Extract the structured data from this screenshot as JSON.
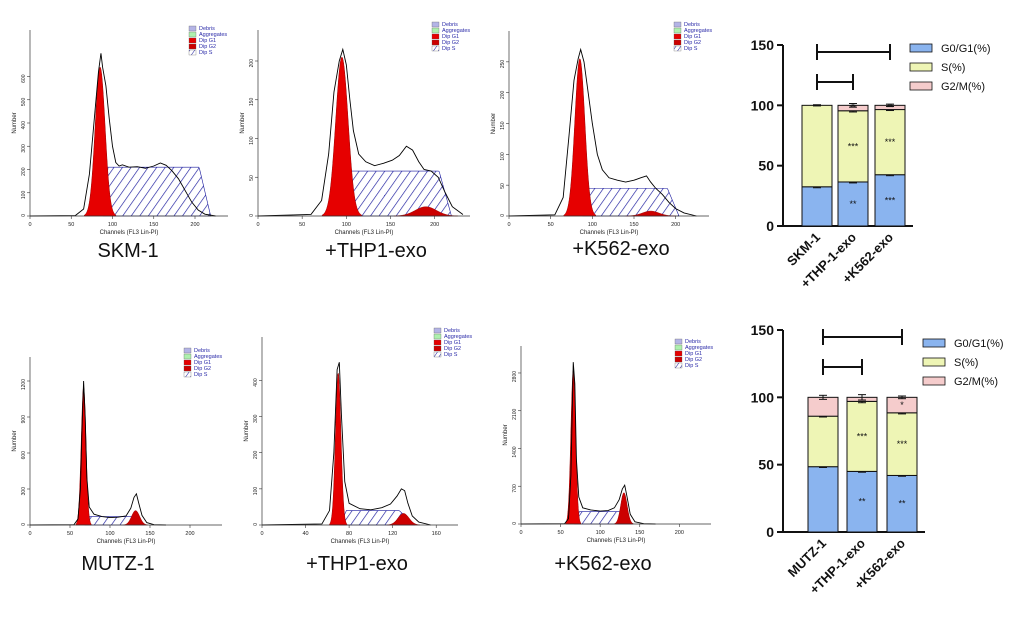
{
  "colors": {
    "g1": "#e60000",
    "g2": "#cc0000",
    "debris": "#b4b4e6",
    "aggregates": "#aef0ae",
    "s_hatch": "#1a1a9e",
    "envelope": "#000000",
    "legend_text": "#2a2aa8",
    "bar_g0g1": "#8ab4ef",
    "bar_s": "#eef5b5",
    "bar_g2m": "#f5cccc"
  },
  "histogram_legend": [
    "Debris",
    "Aggregates",
    "Dip G1",
    "Dip G2",
    "Dip S"
  ],
  "x_axis_label": "Channels (FL3 Lin-PI)",
  "y_axis_label": "Number",
  "histograms": [
    {
      "id": "skm1",
      "caption": "SKM-1",
      "x_ticks": [
        "0",
        "50",
        "100",
        "150",
        "200"
      ],
      "xmax": 240,
      "y_ticks": [
        "0",
        "100",
        "200",
        "300",
        "400",
        "500",
        "600"
      ],
      "ymax": 800,
      "g1_peak": 85,
      "g1_height": 640,
      "g1_width": 6,
      "g2_peak": 175,
      "g2_height": 0,
      "g2_width": 8,
      "s_level": 210,
      "s_end": 205,
      "envelope": [
        [
          0,
          0
        ],
        [
          55,
          2
        ],
        [
          65,
          30
        ],
        [
          72,
          180
        ],
        [
          78,
          420
        ],
        [
          83,
          620
        ],
        [
          86,
          700
        ],
        [
          88,
          640
        ],
        [
          92,
          560
        ],
        [
          96,
          420
        ],
        [
          100,
          300
        ],
        [
          104,
          230
        ],
        [
          108,
          215
        ],
        [
          112,
          220
        ],
        [
          120,
          210
        ],
        [
          130,
          212
        ],
        [
          140,
          205
        ],
        [
          150,
          215
        ],
        [
          158,
          228
        ],
        [
          165,
          218
        ],
        [
          172,
          195
        ],
        [
          180,
          160
        ],
        [
          188,
          110
        ],
        [
          196,
          60
        ],
        [
          204,
          25
        ],
        [
          212,
          8
        ],
        [
          225,
          0
        ]
      ]
    },
    {
      "id": "skm1-thp1",
      "caption": "+THP1-exo",
      "x_ticks": [
        "0",
        "50",
        "100",
        "150",
        "200"
      ],
      "xmax": 240,
      "y_ticks": [
        "0",
        "50",
        "100",
        "150",
        "200"
      ],
      "ymax": 240,
      "g1_peak": 95,
      "g1_height": 205,
      "g1_width": 7,
      "g2_peak": 190,
      "g2_height": 12,
      "g2_width": 12,
      "s_level": 58,
      "s_end": 205,
      "envelope": [
        [
          0,
          0
        ],
        [
          60,
          2
        ],
        [
          72,
          20
        ],
        [
          80,
          80
        ],
        [
          86,
          160
        ],
        [
          92,
          200
        ],
        [
          96,
          215
        ],
        [
          100,
          195
        ],
        [
          104,
          150
        ],
        [
          108,
          110
        ],
        [
          114,
          80
        ],
        [
          122,
          70
        ],
        [
          132,
          65
        ],
        [
          142,
          68
        ],
        [
          152,
          72
        ],
        [
          160,
          78
        ],
        [
          168,
          90
        ],
        [
          175,
          85
        ],
        [
          182,
          70
        ],
        [
          188,
          60
        ],
        [
          196,
          58
        ],
        [
          204,
          50
        ],
        [
          212,
          30
        ],
        [
          220,
          12
        ],
        [
          232,
          2
        ]
      ]
    },
    {
      "id": "skm1-k562",
      "caption": "+K562-exo",
      "x_ticks": [
        "0",
        "50",
        "100",
        "150",
        "200"
      ],
      "xmax": 240,
      "y_ticks": [
        "0",
        "50",
        "100",
        "150",
        "200",
        "250"
      ],
      "ymax": 300,
      "g1_peak": 85,
      "g1_height": 255,
      "g1_width": 6,
      "g2_peak": 170,
      "g2_height": 8,
      "g2_width": 10,
      "s_level": 45,
      "s_end": 190,
      "envelope": [
        [
          0,
          0
        ],
        [
          55,
          2
        ],
        [
          65,
          30
        ],
        [
          72,
          130
        ],
        [
          78,
          220
        ],
        [
          83,
          255
        ],
        [
          86,
          270
        ],
        [
          90,
          250
        ],
        [
          95,
          200
        ],
        [
          100,
          150
        ],
        [
          106,
          100
        ],
        [
          112,
          75
        ],
        [
          120,
          62
        ],
        [
          130,
          58
        ],
        [
          140,
          55
        ],
        [
          150,
          58
        ],
        [
          158,
          62
        ],
        [
          165,
          65
        ],
        [
          170,
          55
        ],
        [
          176,
          45
        ],
        [
          184,
          35
        ],
        [
          192,
          22
        ],
        [
          200,
          12
        ],
        [
          210,
          5
        ],
        [
          225,
          0
        ]
      ]
    },
    {
      "id": "mutz1",
      "caption": "MUTZ-1",
      "x_ticks": [
        "0",
        "50",
        "100",
        "150",
        "200"
      ],
      "xmax": 240,
      "y_ticks": [
        "0",
        "300",
        "600",
        "900",
        "1200"
      ],
      "ymax": 1400,
      "g1_peak": 67,
      "g1_height": 1150,
      "g1_width": 3,
      "g2_peak": 132,
      "g2_height": 120,
      "g2_width": 5,
      "s_level": 70,
      "s_end": 128,
      "envelope": [
        [
          0,
          0
        ],
        [
          55,
          3
        ],
        [
          60,
          50
        ],
        [
          63,
          300
        ],
        [
          65,
          800
        ],
        [
          67,
          1200
        ],
        [
          69,
          900
        ],
        [
          71,
          400
        ],
        [
          74,
          150
        ],
        [
          80,
          90
        ],
        [
          90,
          70
        ],
        [
          100,
          62
        ],
        [
          110,
          65
        ],
        [
          120,
          75
        ],
        [
          126,
          140
        ],
        [
          130,
          230
        ],
        [
          133,
          260
        ],
        [
          136,
          180
        ],
        [
          140,
          80
        ],
        [
          146,
          20
        ],
        [
          155,
          3
        ],
        [
          170,
          0
        ]
      ]
    },
    {
      "id": "mutz1-thp1",
      "caption": "+THP1-exo",
      "x_ticks": [
        "0",
        "40",
        "80",
        "120",
        "160"
      ],
      "xmax": 180,
      "y_ticks": [
        "0",
        "100",
        "200",
        "300",
        "400"
      ],
      "ymax": 520,
      "g1_peak": 70,
      "g1_height": 420,
      "g1_width": 2.5,
      "g2_peak": 130,
      "g2_height": 32,
      "g2_width": 5,
      "s_level": 40,
      "s_end": 126,
      "envelope": [
        [
          0,
          0
        ],
        [
          55,
          3
        ],
        [
          62,
          40
        ],
        [
          66,
          200
        ],
        [
          69,
          430
        ],
        [
          71,
          450
        ],
        [
          73,
          300
        ],
        [
          76,
          120
        ],
        [
          80,
          60
        ],
        [
          90,
          45
        ],
        [
          100,
          42
        ],
        [
          110,
          48
        ],
        [
          118,
          58
        ],
        [
          124,
          80
        ],
        [
          128,
          100
        ],
        [
          131,
          95
        ],
        [
          134,
          60
        ],
        [
          138,
          25
        ],
        [
          144,
          8
        ],
        [
          155,
          0
        ]
      ]
    },
    {
      "id": "mutz1-k562",
      "caption": "+K562-exo",
      "x_ticks": [
        "0",
        "50",
        "100",
        "150",
        "200"
      ],
      "xmax": 240,
      "y_ticks": [
        "0",
        "700",
        "1400",
        "2100",
        "2800"
      ],
      "ymax": 3300,
      "g1_peak": 66,
      "g1_height": 2850,
      "g1_width": 3,
      "g2_peak": 130,
      "g2_height": 580,
      "g2_width": 4,
      "s_level": 230,
      "s_end": 126,
      "envelope": [
        [
          0,
          0
        ],
        [
          55,
          5
        ],
        [
          60,
          100
        ],
        [
          63,
          900
        ],
        [
          65,
          2300
        ],
        [
          66,
          3000
        ],
        [
          68,
          2600
        ],
        [
          70,
          1200
        ],
        [
          73,
          500
        ],
        [
          78,
          300
        ],
        [
          88,
          260
        ],
        [
          100,
          240
        ],
        [
          110,
          250
        ],
        [
          118,
          300
        ],
        [
          124,
          450
        ],
        [
          128,
          650
        ],
        [
          131,
          720
        ],
        [
          134,
          500
        ],
        [
          138,
          180
        ],
        [
          144,
          40
        ],
        [
          155,
          5
        ],
        [
          170,
          0
        ]
      ]
    }
  ],
  "chart_data": [
    {
      "type": "bar",
      "stacked": true,
      "categories": [
        "SKM-1",
        "+THP-1-exo",
        "+K562-exo"
      ],
      "series": [
        {
          "name": "G0/G1(%)",
          "values": [
            32.5,
            36.5,
            42.5
          ],
          "errors": [
            0.8,
            0.8,
            0.8
          ],
          "annotations": [
            "",
            "**",
            "***"
          ]
        },
        {
          "name": "S(%)",
          "values": [
            67.5,
            59,
            54
          ],
          "errors": [
            0.5,
            1.0,
            0.8
          ],
          "annotations": [
            "",
            "***",
            "***"
          ]
        },
        {
          "name": "G2/M(%)",
          "values": [
            0,
            4.5,
            3.5
          ],
          "errors": [
            0,
            1.5,
            1.0
          ],
          "annotations": [
            "",
            "**",
            "**"
          ]
        }
      ],
      "yticks": [
        0,
        50,
        100,
        150
      ],
      "ylim": [
        0,
        150
      ],
      "brackets": [
        [
          "SKM-1",
          "+THP-1-exo"
        ],
        [
          "SKM-1",
          "+K562-exo"
        ]
      ],
      "legend": "top-right"
    },
    {
      "type": "bar",
      "stacked": true,
      "categories": [
        "MUTZ-1",
        "+THP-1-exo",
        "+K562-exo"
      ],
      "series": [
        {
          "name": "G0/G1(%)",
          "values": [
            48.5,
            45,
            42
          ],
          "errors": [
            0.6,
            0.6,
            0.6
          ],
          "annotations": [
            "",
            "**",
            "**"
          ]
        },
        {
          "name": "S(%)",
          "values": [
            37.5,
            52,
            46.5
          ],
          "errors": [
            0.6,
            1.0,
            0.8
          ],
          "annotations": [
            "",
            "***",
            "***"
          ]
        },
        {
          "name": "G2/M(%)",
          "values": [
            14,
            3,
            11.5
          ],
          "errors": [
            1.5,
            2.0,
            1.0
          ],
          "annotations": [
            "",
            "",
            "*"
          ]
        }
      ],
      "yticks": [
        0,
        50,
        100,
        150
      ],
      "ylim": [
        0,
        150
      ],
      "brackets": [
        [
          "MUTZ-1",
          "+THP-1-exo"
        ],
        [
          "MUTZ-1",
          "+K562-exo"
        ]
      ],
      "legend": "top-right"
    }
  ]
}
